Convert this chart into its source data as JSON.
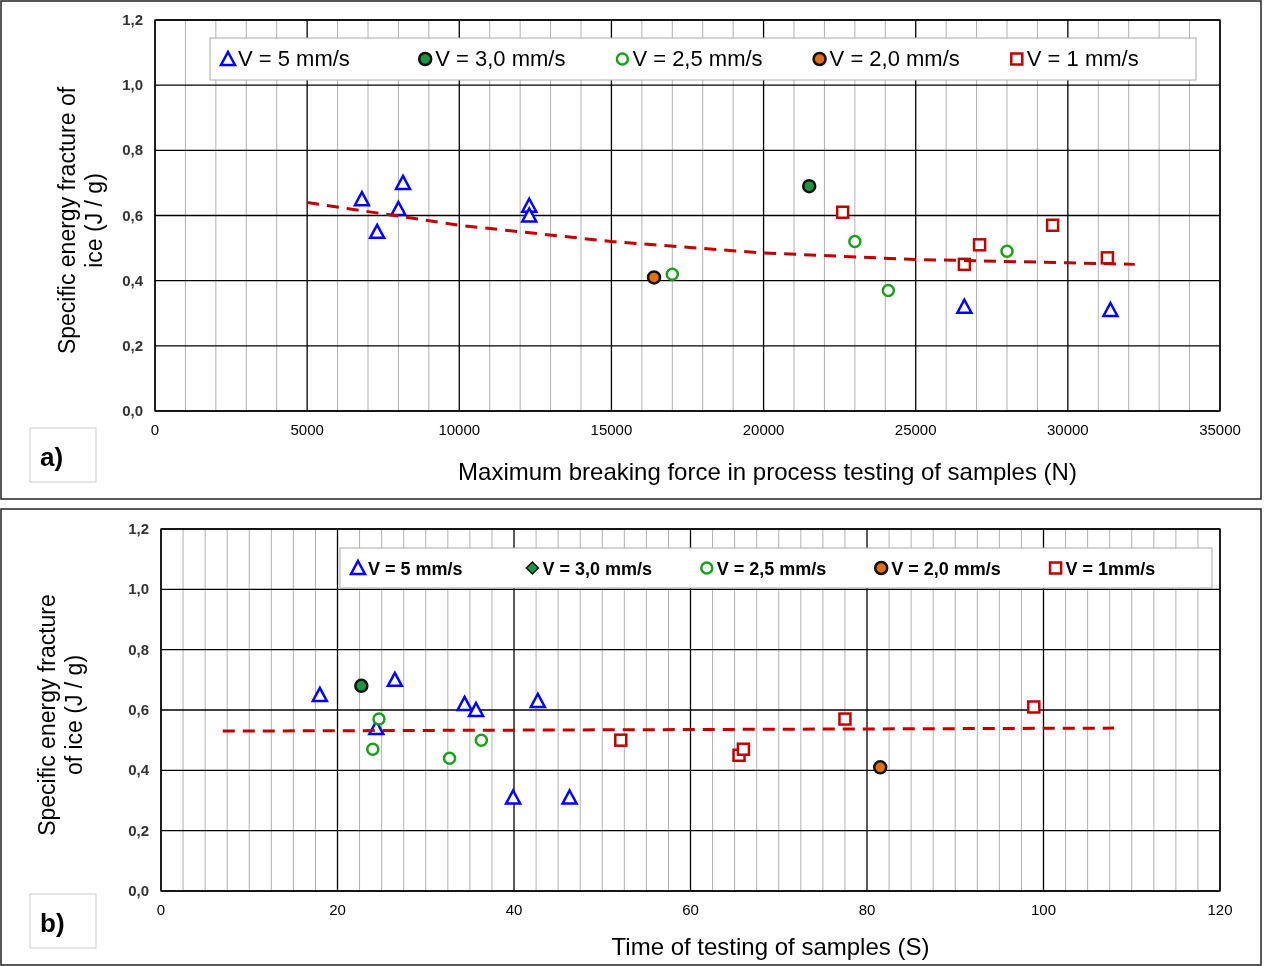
{
  "chart_data": [
    {
      "type": "scatter",
      "xlabel": "Maximum breaking force in process testing of samples  (N)",
      "ylabel": "Specific energy   fracture of\nice  (J / g)",
      "annotations": [
        "a)"
      ],
      "xlim": [
        0,
        35000
      ],
      "ylim": [
        0,
        1.2
      ],
      "xticks": [
        0,
        {
          "value": 1000,
          "label": null
        },
        {
          "value": 2000,
          "label": null
        },
        {
          "value": 3000,
          "label": null
        },
        {
          "value": 4000,
          "label": null
        },
        5000,
        {
          "value": 6000,
          "label": null
        },
        {
          "value": 7000,
          "label": null
        },
        {
          "value": 8000,
          "label": null
        },
        {
          "value": 9000,
          "label": null
        },
        10000,
        {
          "value": 11000,
          "label": null
        },
        {
          "value": 12000,
          "label": null
        },
        {
          "value": 13000,
          "label": null
        },
        {
          "value": 14000,
          "label": null
        },
        15000,
        {
          "value": 16000,
          "label": null
        },
        {
          "value": 17000,
          "label": null
        },
        {
          "value": 18000,
          "label": null
        },
        {
          "value": 19000,
          "label": null
        },
        20000,
        {
          "value": 21000,
          "label": null
        },
        {
          "value": 22000,
          "label": null
        },
        {
          "value": 23000,
          "label": null
        },
        {
          "value": 24000,
          "label": null
        },
        25000,
        {
          "value": 26000,
          "label": null
        },
        {
          "value": 27000,
          "label": null
        },
        {
          "value": 28000,
          "label": null
        },
        {
          "value": 29000,
          "label": null
        },
        30000,
        {
          "value": 31000,
          "label": null
        },
        {
          "value": 32000,
          "label": null
        },
        {
          "value": 33000,
          "label": null
        },
        {
          "value": 34000,
          "label": null
        },
        35000
      ],
      "yticks": [
        {
          "value": 0,
          "label": "0,0"
        },
        {
          "value": 0.2,
          "label": "0,2"
        },
        {
          "value": 0.4,
          "label": "0,4"
        },
        {
          "value": 0.6,
          "label": "0,6"
        },
        {
          "value": 0.8,
          "label": "0,8"
        },
        {
          "value": 1.0,
          "label": "1,0"
        },
        {
          "value": 1.2,
          "label": "1,2"
        }
      ],
      "grid": true,
      "legend": "top",
      "series": [
        {
          "name": "V = 5 mm/s",
          "color": "#0000ff",
          "marker": "triangle",
          "x": [
            6800,
            7300,
            8000,
            8150,
            12300,
            12300,
            26600,
            31400
          ],
          "values": [
            0.65,
            0.55,
            0.62,
            0.7,
            0.63,
            0.6,
            0.32,
            0.31
          ]
        },
        {
          "name": "V = 3,0 mm/s",
          "color": "#1a9641",
          "marker": "circle",
          "x": [
            21500
          ],
          "values": [
            0.69
          ]
        },
        {
          "name": "V = 2,5 mm/s",
          "color": "#1aa01a",
          "marker": "circle",
          "x": [
            17000,
            23000,
            24100,
            28000
          ],
          "values": [
            0.42,
            0.52,
            0.37,
            0.49
          ]
        },
        {
          "name": "V = 2,0 mm/s",
          "color": "#e07010",
          "marker": "circle",
          "x": [
            16400
          ],
          "values": [
            0.41
          ]
        },
        {
          "name": "V = 1 mm/s",
          "color": "#c00000",
          "marker": "square",
          "x": [
            22600,
            26600,
            27100,
            29500,
            31300
          ],
          "values": [
            0.61,
            0.45,
            0.51,
            0.57,
            0.47
          ]
        },
        {
          "type": "line",
          "color": "#c00000",
          "line_style": "dashed",
          "x": [
            5000,
            10000,
            15000,
            20000,
            25000,
            30000,
            32200
          ],
          "values": [
            0.64,
            0.57,
            0.52,
            0.485,
            0.465,
            0.455,
            0.45
          ]
        }
      ]
    },
    {
      "type": "scatter",
      "xlabel": "Time of testing of samples    (S)",
      "ylabel": "Specific energy  fracture\nof  ice   (J / g)",
      "annotations": [
        "b)"
      ],
      "xlim": [
        0,
        120
      ],
      "ylim": [
        0,
        1.2
      ],
      "xticks": [
        0,
        {
          "value": 2.5,
          "label": null
        },
        {
          "value": 5,
          "label": null
        },
        {
          "value": 7.5,
          "label": null
        },
        {
          "value": 10,
          "label": null
        },
        {
          "value": 12.5,
          "label": null
        },
        {
          "value": 15,
          "label": null
        },
        {
          "value": 17.5,
          "label": null
        },
        20,
        {
          "value": 22.5,
          "label": null
        },
        {
          "value": 25,
          "label": null
        },
        {
          "value": 27.5,
          "label": null
        },
        {
          "value": 30,
          "label": null
        },
        {
          "value": 32.5,
          "label": null
        },
        {
          "value": 35,
          "label": null
        },
        {
          "value": 37.5,
          "label": null
        },
        40,
        {
          "value": 42.5,
          "label": null
        },
        {
          "value": 45,
          "label": null
        },
        {
          "value": 47.5,
          "label": null
        },
        {
          "value": 50,
          "label": null
        },
        {
          "value": 52.5,
          "label": null
        },
        {
          "value": 55,
          "label": null
        },
        {
          "value": 57.5,
          "label": null
        },
        60,
        {
          "value": 62.5,
          "label": null
        },
        {
          "value": 65,
          "label": null
        },
        {
          "value": 67.5,
          "label": null
        },
        {
          "value": 70,
          "label": null
        },
        {
          "value": 72.5,
          "label": null
        },
        {
          "value": 75,
          "label": null
        },
        {
          "value": 77.5,
          "label": null
        },
        80,
        {
          "value": 82.5,
          "label": null
        },
        {
          "value": 85,
          "label": null
        },
        {
          "value": 87.5,
          "label": null
        },
        {
          "value": 90,
          "label": null
        },
        {
          "value": 92.5,
          "label": null
        },
        {
          "value": 95,
          "label": null
        },
        {
          "value": 97.5,
          "label": null
        },
        100,
        {
          "value": 102.5,
          "label": null
        },
        {
          "value": 105,
          "label": null
        },
        {
          "value": 107.5,
          "label": null
        },
        {
          "value": 110,
          "label": null
        },
        {
          "value": 112.5,
          "label": null
        },
        {
          "value": 115,
          "label": null
        },
        {
          "value": 117.5,
          "label": null
        },
        120
      ],
      "yticks": [
        {
          "value": 0,
          "label": "0,0"
        },
        {
          "value": 0.2,
          "label": "0,2"
        },
        {
          "value": 0.4,
          "label": "0,4"
        },
        {
          "value": 0.6,
          "label": "0,6"
        },
        {
          "value": 0.8,
          "label": "0,8"
        },
        {
          "value": 1.0,
          "label": "1,0"
        },
        {
          "value": 1.2,
          "label": "1,2"
        }
      ],
      "grid": true,
      "legend": "top right",
      "series": [
        {
          "name": "V = 5 mm/s",
          "color": "#0000ff",
          "marker": "triangle",
          "x": [
            18,
            26.5,
            24.4,
            34.4,
            35.7,
            42.7,
            39.9,
            46.3
          ],
          "values": [
            0.65,
            0.7,
            0.54,
            0.62,
            0.6,
            0.63,
            0.31,
            0.31
          ]
        },
        {
          "name": "V = 3,0 mm/s",
          "color": "#1a9641",
          "marker": "circle",
          "x": [
            22.7
          ],
          "values": [
            0.68
          ]
        },
        {
          "name": "V = 2,5  mm/s",
          "color": "#1aa01a",
          "marker": "circle",
          "x": [
            24.7,
            24.0,
            32.7,
            36.3
          ],
          "values": [
            0.57,
            0.47,
            0.44,
            0.5
          ]
        },
        {
          "name": "V = 2,0 mm/s",
          "color": "#e07010",
          "marker": "circle",
          "x": [
            81.5
          ],
          "values": [
            0.41
          ]
        },
        {
          "name": "V = 1mm/s",
          "color": "#c00000",
          "marker": "square",
          "x": [
            52.1,
            65.5,
            66,
            77.5,
            98.9
          ],
          "values": [
            0.5,
            0.45,
            0.47,
            0.57,
            0.61
          ]
        },
        {
          "type": "line",
          "color": "#c00000",
          "line_style": "dashed",
          "x": [
            7,
            108
          ],
          "values": [
            0.53,
            0.54
          ]
        }
      ]
    }
  ]
}
